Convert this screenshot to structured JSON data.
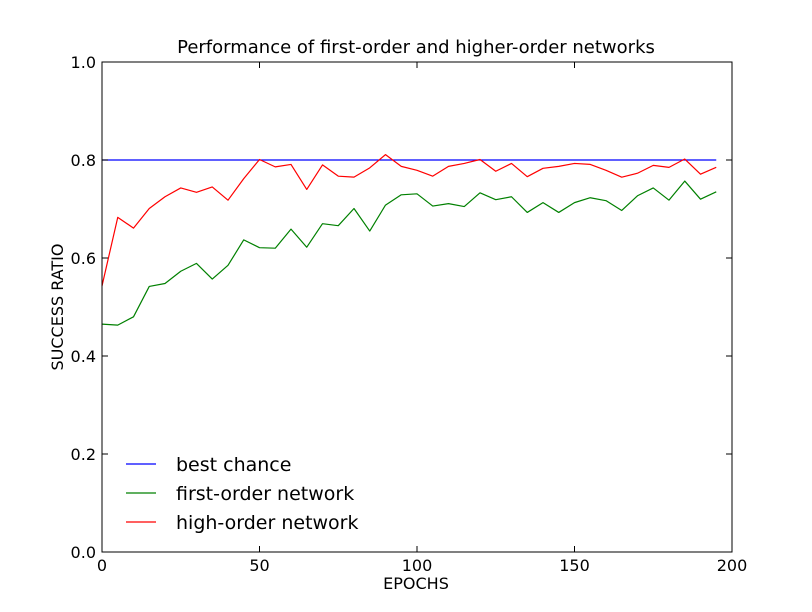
{
  "chart_data": {
    "type": "line",
    "title": "Performance of first-order and higher-order networks",
    "xlabel": "EPOCHS",
    "ylabel": "SUCCESS RATIO",
    "xlim": [
      0,
      200
    ],
    "ylim": [
      0.0,
      1.0
    ],
    "xticks": [
      0,
      50,
      100,
      150,
      200
    ],
    "yticks": [
      0.0,
      0.2,
      0.4,
      0.6,
      0.8,
      1.0
    ],
    "xtick_labels": [
      "0",
      "50",
      "100",
      "150",
      "200"
    ],
    "ytick_labels": [
      "0.0",
      "0.2",
      "0.4",
      "0.6",
      "0.8",
      "1.0"
    ],
    "grid": false,
    "legend_position": "lower-left",
    "x": [
      0,
      5,
      10,
      15,
      20,
      25,
      30,
      35,
      40,
      45,
      50,
      55,
      60,
      65,
      70,
      75,
      80,
      85,
      90,
      95,
      100,
      105,
      110,
      115,
      120,
      125,
      130,
      135,
      140,
      145,
      150,
      155,
      160,
      165,
      170,
      175,
      180,
      185,
      190,
      195
    ],
    "series": [
      {
        "name": "best chance",
        "color": "#0000ff",
        "values": [
          0.8,
          0.8,
          0.8,
          0.8,
          0.8,
          0.8,
          0.8,
          0.8,
          0.8,
          0.8,
          0.8,
          0.8,
          0.8,
          0.8,
          0.8,
          0.8,
          0.8,
          0.8,
          0.8,
          0.8,
          0.8,
          0.8,
          0.8,
          0.8,
          0.8,
          0.8,
          0.8,
          0.8,
          0.8,
          0.8,
          0.8,
          0.8,
          0.8,
          0.8,
          0.8,
          0.8,
          0.8,
          0.8,
          0.8,
          0.8
        ]
      },
      {
        "name": "first-order network",
        "color": "#008000",
        "values": [
          0.465,
          0.463,
          0.48,
          0.542,
          0.548,
          0.573,
          0.589,
          0.557,
          0.585,
          0.637,
          0.621,
          0.62,
          0.659,
          0.622,
          0.67,
          0.666,
          0.701,
          0.655,
          0.708,
          0.729,
          0.731,
          0.706,
          0.711,
          0.705,
          0.733,
          0.719,
          0.725,
          0.693,
          0.713,
          0.693,
          0.713,
          0.723,
          0.717,
          0.697,
          0.727,
          0.743,
          0.718,
          0.757,
          0.72,
          0.735
        ]
      },
      {
        "name": "high-order network",
        "color": "#ff0000",
        "values": [
          0.543,
          0.683,
          0.661,
          0.701,
          0.725,
          0.743,
          0.734,
          0.745,
          0.718,
          0.762,
          0.801,
          0.786,
          0.791,
          0.74,
          0.79,
          0.767,
          0.765,
          0.784,
          0.811,
          0.787,
          0.779,
          0.767,
          0.787,
          0.793,
          0.801,
          0.777,
          0.793,
          0.766,
          0.783,
          0.787,
          0.793,
          0.791,
          0.779,
          0.765,
          0.773,
          0.789,
          0.785,
          0.802,
          0.771,
          0.785
        ]
      }
    ]
  }
}
